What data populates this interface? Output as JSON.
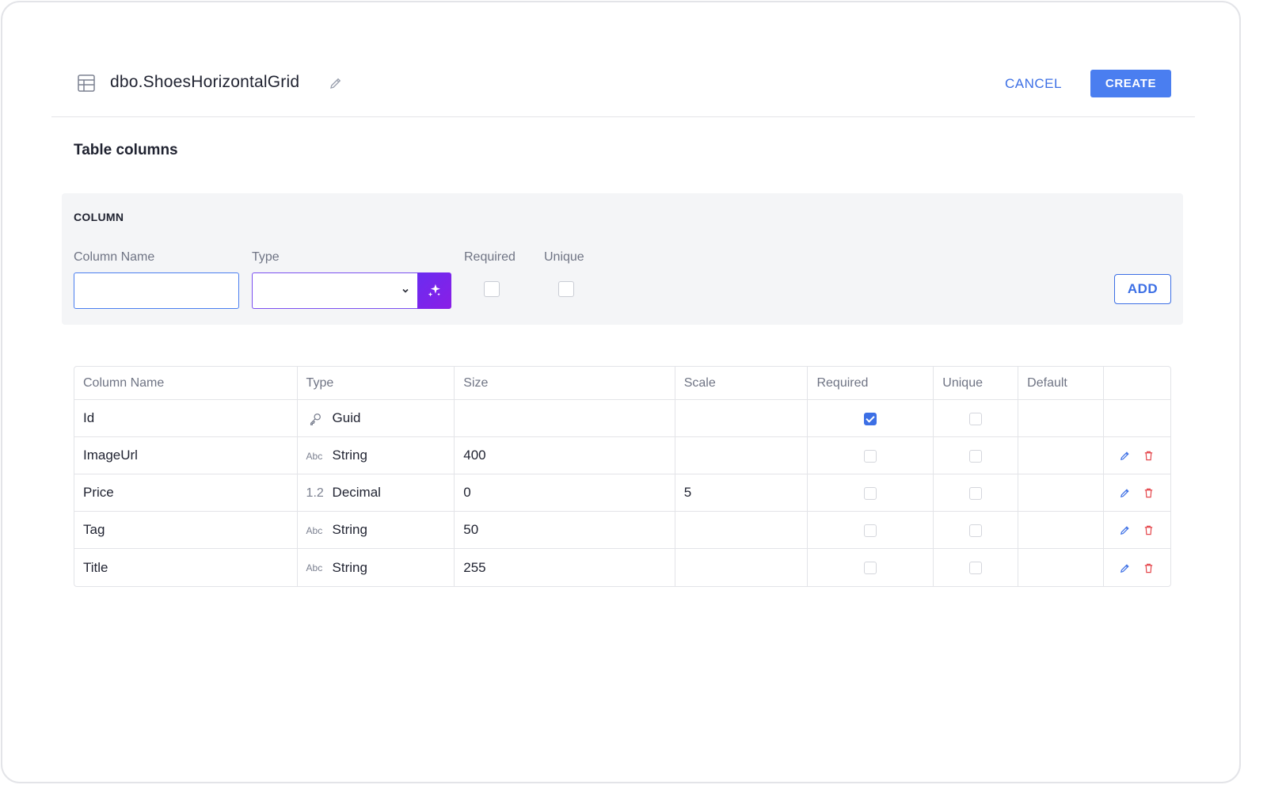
{
  "header": {
    "title": "dbo.ShoesHorizontalGrid",
    "cancel_label": "CANCEL",
    "create_label": "CREATE"
  },
  "section": {
    "title": "Table columns"
  },
  "add_panel": {
    "heading": "COLUMN",
    "column_name_label": "Column Name",
    "column_name_value": "",
    "type_label": "Type",
    "type_value": "",
    "required_label": "Required",
    "required_checked": false,
    "unique_label": "Unique",
    "unique_checked": false,
    "add_label": "ADD"
  },
  "columns_table": {
    "headers": [
      "Column Name",
      "Type",
      "Size",
      "Scale",
      "Required",
      "Unique",
      "Default",
      ""
    ],
    "rows": [
      {
        "name": "Id",
        "type_icon": "key-icon",
        "type": "Guid",
        "size": "",
        "scale": "",
        "required": true,
        "unique": false,
        "default": "",
        "actions": false
      },
      {
        "name": "ImageUrl",
        "type_icon": "Abc",
        "type": "String",
        "size": "400",
        "scale": "",
        "required": false,
        "unique": false,
        "default": "",
        "actions": true
      },
      {
        "name": "Price",
        "type_icon": "1.2",
        "type": "Decimal",
        "size": "0",
        "scale": "5",
        "required": false,
        "unique": false,
        "default": "",
        "actions": true
      },
      {
        "name": "Tag",
        "type_icon": "Abc",
        "type": "String",
        "size": "50",
        "scale": "",
        "required": false,
        "unique": false,
        "default": "",
        "actions": true
      },
      {
        "name": "Title",
        "type_icon": "Abc",
        "type": "String",
        "size": "255",
        "scale": "",
        "required": false,
        "unique": false,
        "default": "",
        "actions": true
      }
    ]
  },
  "colors": {
    "accent": "#4a7ef0",
    "ai_gradient_start": "#6a2cf0",
    "ai_gradient_end": "#8a1ee6",
    "delete": "#e5484d"
  }
}
